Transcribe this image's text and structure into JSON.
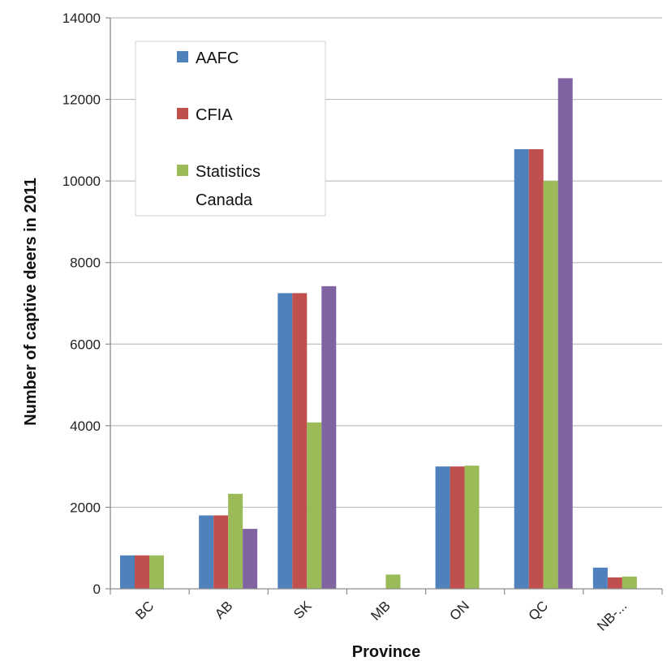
{
  "chart_data": {
    "type": "bar",
    "xlabel": "Province",
    "ylabel": "Number of captive deers in 2011",
    "ylim": [
      0,
      14000
    ],
    "yticks": [
      0,
      2000,
      4000,
      6000,
      8000,
      10000,
      12000,
      14000
    ],
    "grid": true,
    "legend_position": "top-left",
    "categories": [
      "BC",
      "AB",
      "SK",
      "MB",
      "ON",
      "QC",
      "NB-..."
    ],
    "series": [
      {
        "name": "AAFC",
        "color": "#4f81bd",
        "values": [
          820,
          1800,
          7250,
          0,
          3000,
          10780,
          520
        ]
      },
      {
        "name": "CFIA",
        "color": "#c0504d",
        "values": [
          820,
          1800,
          7250,
          0,
          3000,
          10780,
          280
        ]
      },
      {
        "name": "Statistics Canada",
        "color": "#9bbb59",
        "values": [
          820,
          2330,
          4080,
          350,
          3020,
          10000,
          300
        ]
      },
      {
        "name": "",
        "color": "#8064a2",
        "values": [
          0,
          1470,
          7420,
          0,
          0,
          12520,
          0
        ]
      }
    ]
  }
}
